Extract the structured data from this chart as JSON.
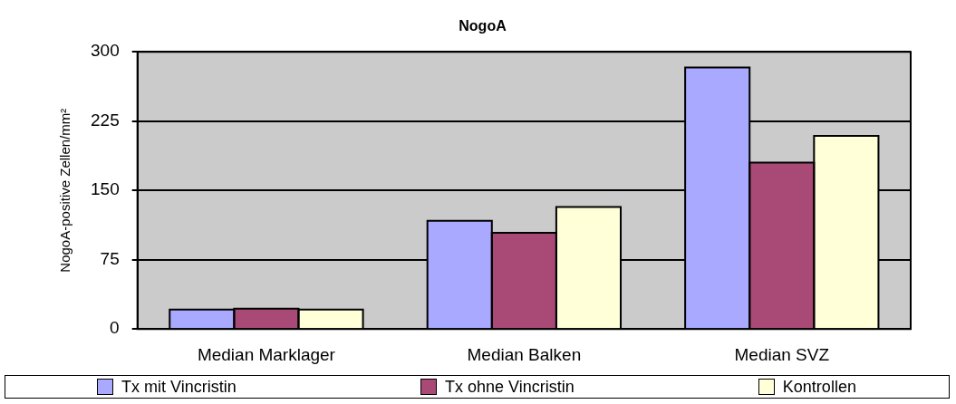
{
  "chart_data": {
    "type": "bar",
    "title": "NogoA",
    "ylabel": "NogoA-positive Zellen/mm²",
    "categories": [
      "Median Marklager",
      "Median Balken",
      "Median SVZ"
    ],
    "series": [
      {
        "name": "Tx mit Vincristin",
        "color": "#a9aaff",
        "values": [
          21,
          117,
          283
        ]
      },
      {
        "name": "Tx ohne Vincristin",
        "color": "#a94a76",
        "values": [
          22,
          104,
          180
        ]
      },
      {
        "name": "Kontrollen",
        "color": "#ffffd8",
        "values": [
          21,
          132,
          209
        ]
      }
    ],
    "ylim": [
      0,
      300
    ],
    "yticks": [
      0,
      75,
      150,
      225,
      300
    ],
    "grid": "y",
    "legend": "bottom"
  }
}
